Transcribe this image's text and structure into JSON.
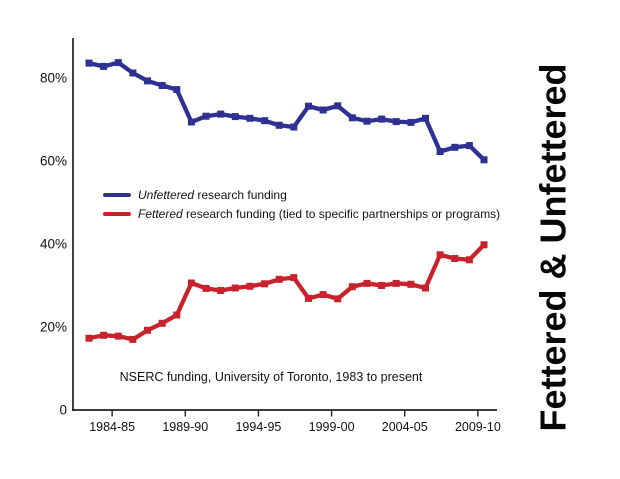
{
  "page": {
    "background": "#ffffff"
  },
  "chart_data": {
    "type": "line",
    "title": "Fettered & Unfettered",
    "annotation": "NSERC funding, University of Toronto, 1983 to present",
    "categories": [
      "1983-84",
      "1984-85",
      "1985-86",
      "1986-87",
      "1987-88",
      "1988-89",
      "1989-90",
      "1990-91",
      "1991-92",
      "1992-93",
      "1993-94",
      "1994-95",
      "1995-96",
      "1996-97",
      "1997-98",
      "1998-99",
      "1999-00",
      "2000-01",
      "2001-02",
      "2002-03",
      "2003-04",
      "2004-05",
      "2005-06",
      "2006-07",
      "2007-08",
      "2008-09",
      "2009-10",
      "2010-11"
    ],
    "series": [
      {
        "name": "Unfettered research funding",
        "name_emphasis": "Unfettered",
        "name_rest": " research funding",
        "color": "#2e3192",
        "values": [
          83.6,
          82.8,
          83.7,
          81.2,
          79.3,
          78.2,
          77.2,
          69.4,
          70.8,
          71.3,
          70.7,
          70.3,
          69.7,
          68.6,
          68.2,
          73.2,
          72.3,
          73.3,
          70.4,
          69.6,
          70.1,
          69.5,
          69.3,
          70.3,
          62.3,
          63.3,
          63.7,
          60.3
        ]
      },
      {
        "name": "Fettered research funding (tied to specific partnerships or programs)",
        "name_emphasis": "Fettered",
        "name_rest": " research funding (tied to specific partnerships or programs)",
        "color": "#c8232c",
        "values": [
          17.3,
          18.0,
          17.8,
          17.0,
          19.2,
          20.9,
          22.9,
          30.6,
          29.3,
          28.8,
          29.4,
          29.8,
          30.4,
          31.5,
          31.9,
          26.9,
          27.8,
          26.8,
          29.7,
          30.5,
          30.0,
          30.5,
          30.3,
          29.4,
          37.4,
          36.5,
          36.2,
          39.8
        ]
      }
    ],
    "x_tick_labels": [
      "1984-85",
      "1989-90",
      "1994-95",
      "1999-00",
      "2004-05",
      "2009-10"
    ],
    "x_tick_indices": [
      1,
      6,
      11,
      16,
      21,
      26
    ],
    "y_tick_labels": [
      "0",
      "20%",
      "40%",
      "60%",
      "80%"
    ],
    "y_tick_values": [
      0,
      20,
      40,
      60,
      80
    ],
    "ylim": [
      0,
      88
    ],
    "xlabel": "",
    "ylabel": "",
    "grid": false,
    "legend_position": "inside-left-middle",
    "marker": "square",
    "axis_color": "#231f20"
  }
}
